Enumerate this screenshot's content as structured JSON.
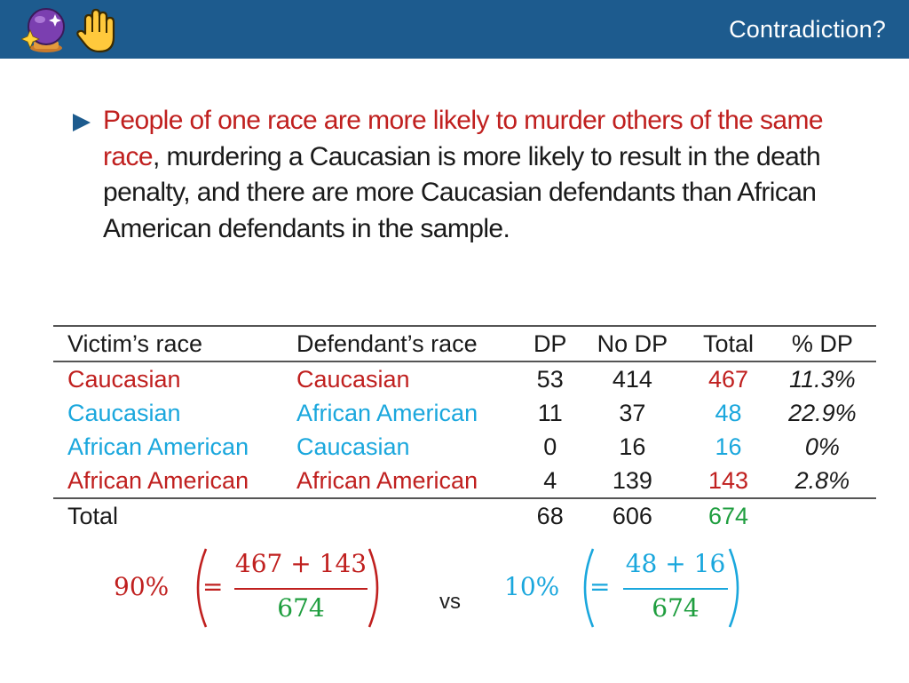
{
  "header": {
    "title": "Contradiction?",
    "icons": [
      "crystal-ball-icon",
      "raised-hand-icon"
    ],
    "background_color": "#1d5b8e"
  },
  "bullet": {
    "highlight": "People of one race are more likely to murder others of the same race",
    "rest": ", murdering a Caucasian is more likely to result in the death penalty, and there are more Caucasian defendants than African American defendants in the sample."
  },
  "table": {
    "headers": [
      "Victim’s race",
      "Defendant’s race",
      "DP",
      "No DP",
      "Total",
      "% DP"
    ],
    "rows": [
      {
        "victim": "Caucasian",
        "defendant": "Caucasian",
        "dp": "53",
        "no_dp": "414",
        "total": "467",
        "pct": "11.3%"
      },
      {
        "victim": "Caucasian",
        "defendant": "African American",
        "dp": "11",
        "no_dp": "37",
        "total": "48",
        "pct": "22.9%"
      },
      {
        "victim": "African American",
        "defendant": "Caucasian",
        "dp": "0",
        "no_dp": "16",
        "total": "16",
        "pct": "0%"
      },
      {
        "victim": "African American",
        "defendant": "African American",
        "dp": "4",
        "no_dp": "139",
        "total": "143",
        "pct": "2.8%"
      }
    ],
    "total_row": {
      "label": "Total",
      "dp": "68",
      "no_dp": "606",
      "total": "674"
    }
  },
  "equations": {
    "left": {
      "percent": "90%",
      "equals": "=",
      "numerator": "467 + 143",
      "denominator": "674",
      "color": "#c0201f"
    },
    "vs": "vs",
    "right": {
      "percent": "10%",
      "equals": "=",
      "numerator": "48 + 16",
      "denominator": "674",
      "color": "#1aa7dd"
    }
  },
  "colors": {
    "red": "#c0201f",
    "cyan": "#1aa7dd",
    "green": "#1f9e3f"
  }
}
